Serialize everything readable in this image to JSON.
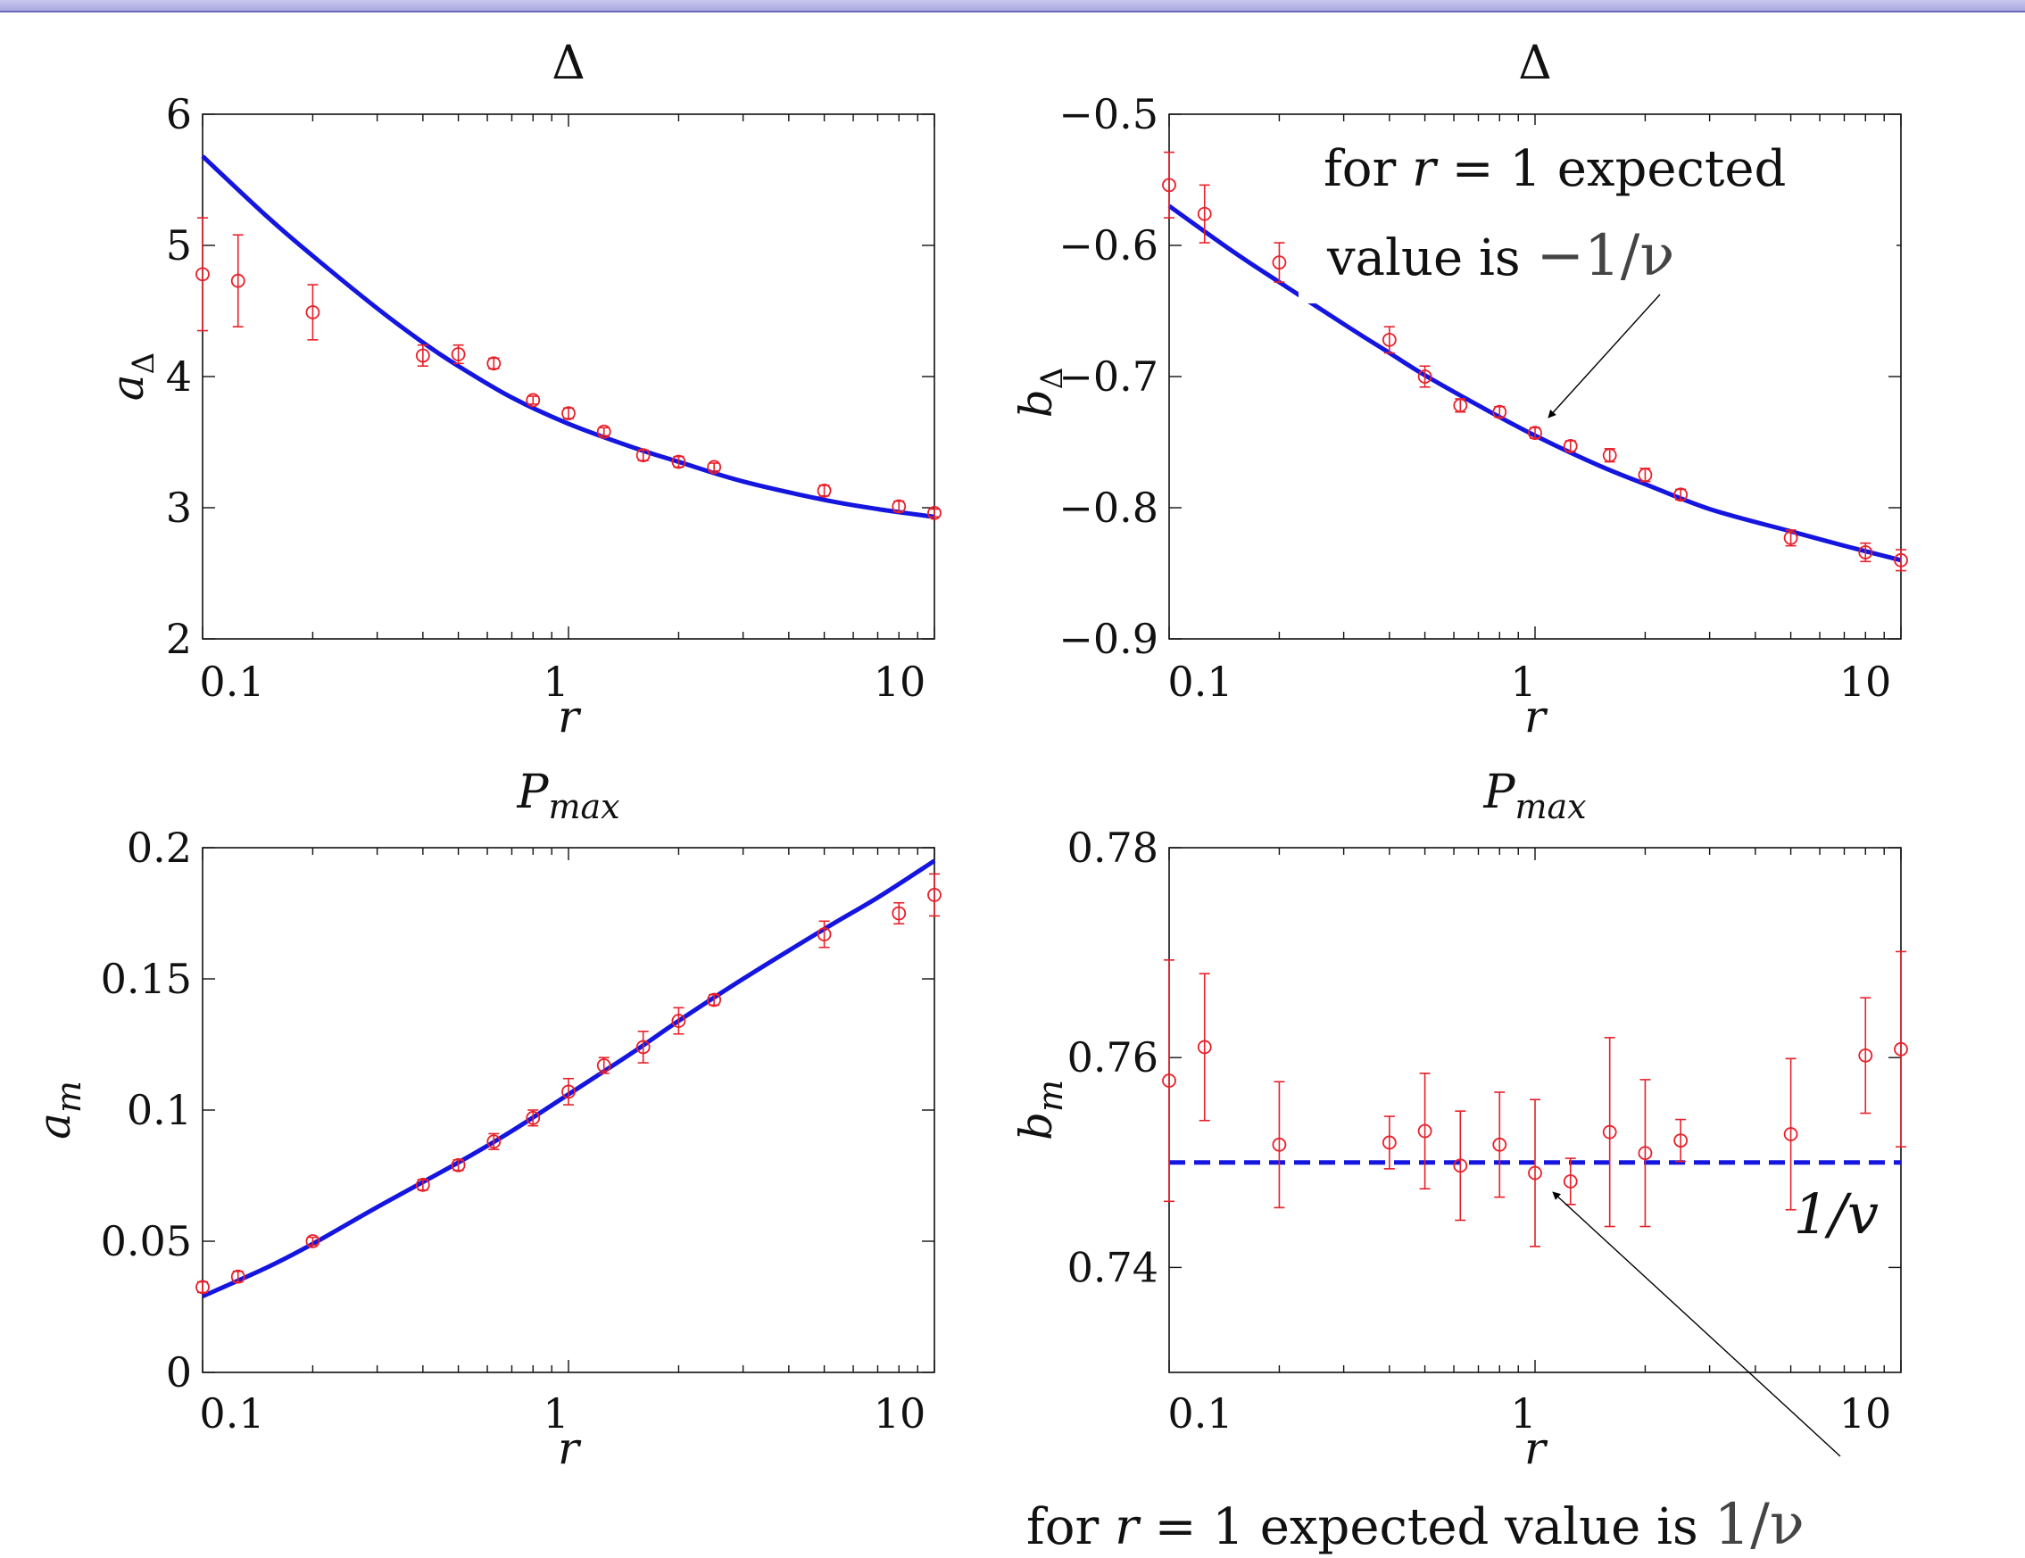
{
  "colors": {
    "fit": "#1515e0",
    "points": "#e8202a",
    "axis": "#111111",
    "banner": "#a8a8e0"
  },
  "chart_data": [
    {
      "type": "scatter",
      "title": "Δ",
      "xlabel": "r",
      "ylabel_main": "a",
      "ylabel_sub": "Δ",
      "xscale": "log",
      "xlim": [
        0.1,
        10
      ],
      "ylim": [
        2,
        6
      ],
      "xticks": [
        "0.1",
        "1",
        "10"
      ],
      "yticks": [
        "2",
        "3",
        "4",
        "5",
        "6"
      ],
      "ytick_values": [
        2,
        3,
        4,
        5,
        6
      ],
      "points": {
        "x": [
          0.1,
          0.125,
          0.2,
          0.4,
          0.5,
          0.625,
          0.8,
          1.0,
          1.25,
          1.6,
          2.0,
          2.5,
          5.0,
          8.0,
          10.0
        ],
        "y": [
          4.78,
          4.73,
          4.49,
          4.16,
          4.17,
          4.1,
          3.82,
          3.72,
          3.58,
          3.4,
          3.35,
          3.31,
          3.13,
          3.01,
          2.96
        ],
        "err": [
          0.43,
          0.35,
          0.21,
          0.08,
          0.07,
          0.04,
          0.03,
          0.04,
          0.03,
          0.04,
          0.04,
          0.03,
          0.04,
          0.04,
          0.03
        ]
      },
      "fit": {
        "x": [
          0.1,
          0.15,
          0.2,
          0.3,
          0.4,
          0.5,
          0.7,
          1.0,
          1.5,
          2.0,
          3.0,
          5.0,
          7.0,
          10.0
        ],
        "y": [
          5.68,
          5.22,
          4.92,
          4.52,
          4.26,
          4.08,
          3.84,
          3.64,
          3.46,
          3.35,
          3.2,
          3.06,
          2.99,
          2.93
        ],
        "style": "solid"
      }
    },
    {
      "type": "scatter",
      "title": "Δ",
      "xlabel": "r",
      "ylabel_main": "b",
      "ylabel_sub": "Δ",
      "xscale": "log",
      "xlim": [
        0.1,
        10
      ],
      "ylim": [
        -0.9,
        -0.5
      ],
      "xticks": [
        "0.1",
        "1",
        "10"
      ],
      "yticks": [
        "−0.9",
        "−0.8",
        "−0.7",
        "−0.6",
        "−0.5"
      ],
      "ytick_values": [
        -0.9,
        -0.8,
        -0.7,
        -0.6,
        -0.5
      ],
      "points": {
        "x": [
          0.1,
          0.125,
          0.2,
          0.4,
          0.5,
          0.625,
          0.8,
          1.0,
          1.25,
          1.6,
          2.0,
          2.5,
          5.0,
          8.0,
          10.0
        ],
        "y": [
          -0.554,
          -0.576,
          -0.613,
          -0.672,
          -0.7,
          -0.722,
          -0.727,
          -0.743,
          -0.753,
          -0.76,
          -0.775,
          -0.79,
          -0.823,
          -0.834,
          -0.84
        ],
        "err": [
          0.025,
          0.022,
          0.015,
          0.01,
          0.008,
          0.005,
          0.004,
          0.004,
          0.004,
          0.005,
          0.005,
          0.004,
          0.006,
          0.007,
          0.008
        ]
      },
      "fit": {
        "x": [
          0.1,
          0.15,
          0.2,
          0.3,
          0.4,
          0.5,
          0.7,
          1.0,
          1.5,
          2.0,
          3.0,
          5.0,
          7.0,
          10.0
        ],
        "y": [
          -0.57,
          -0.605,
          -0.628,
          -0.66,
          -0.682,
          -0.699,
          -0.722,
          -0.745,
          -0.768,
          -0.782,
          -0.801,
          -0.818,
          -0.829,
          -0.84
        ],
        "style": "solid"
      },
      "annotation": {
        "prefix": "for",
        "var": "r",
        "eq": "= 1 expected",
        "line2": "value is",
        "value": "−1/ν"
      }
    },
    {
      "type": "scatter",
      "title_main": "P",
      "title_sub": "max",
      "xlabel": "r",
      "ylabel_main": "a",
      "ylabel_sub": "m",
      "xscale": "log",
      "xlim": [
        0.1,
        10
      ],
      "ylim": [
        0,
        0.2
      ],
      "xticks": [
        "0.1",
        "1",
        "10"
      ],
      "yticks": [
        "0",
        "0.05",
        "0.1",
        "0.15",
        "0.2"
      ],
      "ytick_values": [
        0,
        0.05,
        0.1,
        0.15,
        0.2
      ],
      "points": {
        "x": [
          0.1,
          0.125,
          0.2,
          0.4,
          0.5,
          0.625,
          0.8,
          1.0,
          1.25,
          1.6,
          2.0,
          2.5,
          5.0,
          8.0,
          10.0
        ],
        "y": [
          0.0325,
          0.0365,
          0.05,
          0.0715,
          0.079,
          0.088,
          0.097,
          0.107,
          0.117,
          0.124,
          0.134,
          0.142,
          0.167,
          0.175,
          0.182
        ],
        "err": [
          0.002,
          0.002,
          0.0015,
          0.002,
          0.002,
          0.003,
          0.003,
          0.005,
          0.003,
          0.006,
          0.005,
          0.002,
          0.005,
          0.004,
          0.008
        ]
      },
      "fit": {
        "x": [
          0.1,
          0.15,
          0.2,
          0.3,
          0.5,
          0.7,
          1.0,
          1.5,
          2.0,
          3.0,
          5.0,
          7.0,
          10.0
        ],
        "y": [
          0.029,
          0.04,
          0.049,
          0.063,
          0.08,
          0.092,
          0.106,
          0.122,
          0.134,
          0.15,
          0.169,
          0.181,
          0.195
        ],
        "style": "solid"
      }
    },
    {
      "type": "scatter",
      "title_main": "P",
      "title_sub": "max",
      "xlabel": "r",
      "ylabel_main": "b",
      "ylabel_sub": "m",
      "xscale": "log",
      "xlim": [
        0.1,
        10
      ],
      "ylim": [
        0.73,
        0.78
      ],
      "xticks": [
        "0.1",
        "1",
        "10"
      ],
      "yticks": [
        "0.74",
        "0.76",
        "0.78"
      ],
      "ytick_values": [
        0.74,
        0.76,
        0.78
      ],
      "points": {
        "x": [
          0.1,
          0.125,
          0.2,
          0.4,
          0.5,
          0.625,
          0.8,
          1.0,
          1.25,
          1.6,
          2.0,
          2.5,
          5.0,
          8.0,
          10.0
        ],
        "y": [
          0.7578,
          0.761,
          0.7517,
          0.7519,
          0.753,
          0.7497,
          0.7517,
          0.749,
          0.7482,
          0.7529,
          0.7509,
          0.7521,
          0.7527,
          0.7602,
          0.7608
        ],
        "err": [
          0.0115,
          0.007,
          0.006,
          0.0025,
          0.0055,
          0.0052,
          0.005,
          0.007,
          0.0022,
          0.009,
          0.007,
          0.002,
          0.0072,
          0.0055,
          0.0093
        ]
      },
      "fit": {
        "x": [
          0.1,
          10.0
        ],
        "y": [
          0.75,
          0.75
        ],
        "style": "dashed"
      },
      "line_label": "1/v",
      "annotation": {
        "prefix": "for",
        "var": "r",
        "eq": "= 1 expected value is",
        "value": "1/ν"
      }
    }
  ]
}
